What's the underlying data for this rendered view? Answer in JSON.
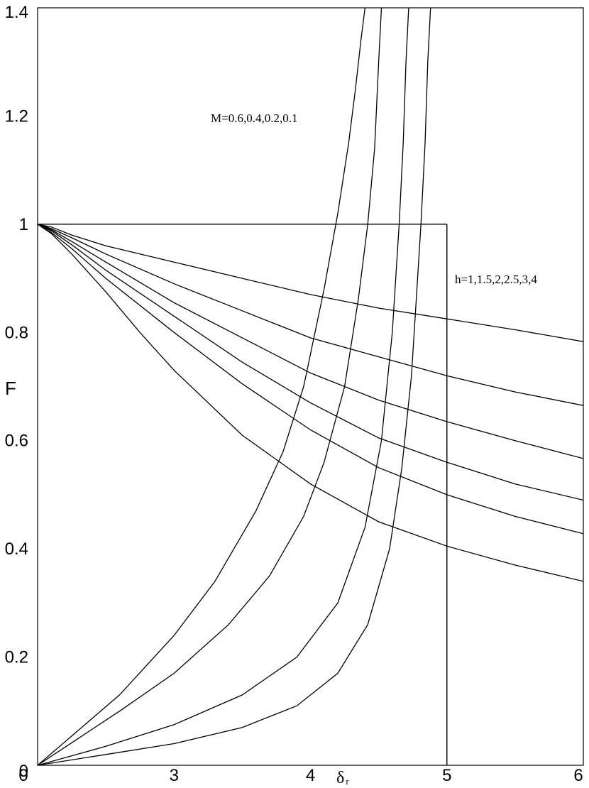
{
  "chart_data": {
    "type": "line",
    "title": "",
    "xlabel": "δ",
    "xlabel_subscript": "r",
    "ylabel": "F",
    "xlim": [
      2,
      6
    ],
    "ylim": [
      0,
      1.4
    ],
    "x_ticks": [
      "3",
      "4",
      "5",
      "6"
    ],
    "y_ticks": [
      "0",
      "0.2",
      "0.4",
      "0.6",
      "0.8",
      "1",
      "1.2",
      "1.4"
    ],
    "grid": false,
    "annotations": {
      "m_label": "M=0.6,0.4,0.2,0.1",
      "h_label": "h=1,1.5,2,2.5,3,4"
    },
    "reference_lines": [
      {
        "x": [
          2,
          5
        ],
        "y": [
          1,
          1
        ]
      },
      {
        "x": [
          5,
          5
        ],
        "y": [
          0,
          1
        ]
      }
    ],
    "series_m": [
      {
        "x": [
          2.0,
          2.3,
          2.6,
          3.0,
          3.3,
          3.6,
          3.8,
          3.95,
          4.1,
          4.2,
          4.28,
          4.33,
          4.37,
          4.4
        ],
        "y": [
          0.0,
          0.065,
          0.13,
          0.24,
          0.34,
          0.47,
          0.58,
          0.7,
          0.88,
          1.02,
          1.15,
          1.25,
          1.34,
          1.4
        ]
      },
      {
        "x": [
          2.0,
          2.3,
          2.6,
          3.0,
          3.4,
          3.7,
          3.95,
          4.1,
          4.25,
          4.35,
          4.42,
          4.47,
          4.5,
          4.52
        ],
        "y": [
          0.0,
          0.05,
          0.1,
          0.17,
          0.26,
          0.35,
          0.46,
          0.56,
          0.7,
          0.86,
          1.0,
          1.14,
          1.3,
          1.4
        ]
      },
      {
        "x": [
          2.0,
          2.5,
          3.0,
          3.5,
          3.9,
          4.2,
          4.4,
          4.52,
          4.6,
          4.65,
          4.68,
          4.7,
          4.72
        ],
        "y": [
          0.0,
          0.035,
          0.075,
          0.13,
          0.2,
          0.3,
          0.44,
          0.6,
          0.8,
          1.0,
          1.15,
          1.3,
          1.4
        ]
      },
      {
        "x": [
          2.0,
          2.5,
          3.0,
          3.5,
          3.9,
          4.2,
          4.42,
          4.58,
          4.67,
          4.74,
          4.78,
          4.81,
          4.84,
          4.86,
          4.88
        ],
        "y": [
          0.0,
          0.02,
          0.04,
          0.07,
          0.11,
          0.17,
          0.26,
          0.4,
          0.55,
          0.72,
          0.88,
          1.0,
          1.15,
          1.3,
          1.4
        ]
      }
    ],
    "series_h": [
      {
        "x": [
          2.0,
          2.1,
          2.25,
          2.5,
          3.0,
          3.5,
          4.0,
          4.5,
          5.0,
          5.5,
          6.0
        ],
        "y": [
          1.0,
          0.995,
          0.98,
          0.96,
          0.93,
          0.9,
          0.87,
          0.845,
          0.825,
          0.805,
          0.783
        ]
      },
      {
        "x": [
          2.0,
          2.1,
          2.25,
          2.5,
          3.0,
          3.5,
          4.0,
          4.5,
          5.0,
          5.5,
          6.0
        ],
        "y": [
          1.0,
          0.992,
          0.975,
          0.945,
          0.89,
          0.84,
          0.79,
          0.755,
          0.72,
          0.69,
          0.665
        ]
      },
      {
        "x": [
          2.0,
          2.1,
          2.25,
          2.5,
          3.0,
          3.5,
          4.0,
          4.5,
          5.0,
          5.5,
          6.0
        ],
        "y": [
          1.0,
          0.99,
          0.968,
          0.93,
          0.855,
          0.79,
          0.725,
          0.675,
          0.635,
          0.6,
          0.567
        ]
      },
      {
        "x": [
          2.0,
          2.1,
          2.25,
          2.5,
          3.0,
          3.5,
          4.0,
          4.5,
          5.0,
          5.5,
          6.0
        ],
        "y": [
          1.0,
          0.988,
          0.962,
          0.915,
          0.83,
          0.745,
          0.67,
          0.605,
          0.56,
          0.52,
          0.49
        ]
      },
      {
        "x": [
          2.0,
          2.1,
          2.25,
          2.5,
          3.0,
          3.5,
          4.0,
          4.5,
          5.0,
          5.5,
          6.0
        ],
        "y": [
          1.0,
          0.985,
          0.955,
          0.9,
          0.8,
          0.705,
          0.62,
          0.55,
          0.5,
          0.46,
          0.428
        ]
      },
      {
        "x": [
          2.0,
          2.1,
          2.25,
          2.5,
          2.75,
          3.0,
          3.5,
          4.0,
          4.5,
          5.0,
          5.5,
          6.0
        ],
        "y": [
          1.0,
          0.983,
          0.945,
          0.875,
          0.8,
          0.73,
          0.61,
          0.52,
          0.45,
          0.405,
          0.37,
          0.34
        ]
      }
    ]
  }
}
